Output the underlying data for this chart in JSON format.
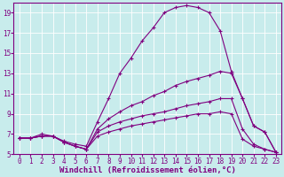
{
  "xlabel": "Windchill (Refroidissement éolien,°C)",
  "background_color": "#c8ecec",
  "grid_color": "#ffffff",
  "line_color": "#800080",
  "xlim": [
    -0.5,
    23.5
  ],
  "ylim": [
    5,
    20
  ],
  "xticks": [
    0,
    1,
    2,
    3,
    4,
    5,
    6,
    7,
    8,
    9,
    10,
    11,
    12,
    13,
    14,
    15,
    16,
    17,
    18,
    19,
    20,
    21,
    22,
    23
  ],
  "yticks": [
    5,
    7,
    9,
    11,
    13,
    15,
    17,
    19
  ],
  "lines": [
    {
      "x": [
        0,
        1,
        2,
        3,
        4,
        5,
        6,
        7,
        8,
        9,
        10,
        11,
        12,
        13,
        14,
        15,
        16,
        17,
        18,
        19,
        20,
        21,
        22,
        23
      ],
      "y": [
        6.6,
        6.6,
        7.0,
        6.8,
        6.3,
        6.0,
        5.8,
        8.2,
        10.5,
        13.0,
        14.5,
        16.2,
        17.5,
        19.0,
        19.5,
        19.7,
        19.5,
        19.0,
        17.2,
        13.2,
        10.5,
        7.8,
        7.2,
        5.2
      ]
    },
    {
      "x": [
        0,
        1,
        2,
        3,
        4,
        5,
        6,
        7,
        8,
        9,
        10,
        11,
        12,
        13,
        14,
        15,
        16,
        17,
        18,
        19,
        20,
        21,
        22,
        23
      ],
      "y": [
        6.6,
        6.6,
        6.8,
        6.8,
        6.2,
        5.8,
        5.5,
        7.5,
        8.5,
        9.2,
        9.8,
        10.2,
        10.8,
        11.2,
        11.8,
        12.2,
        12.5,
        12.8,
        13.2,
        13.0,
        10.5,
        7.8,
        7.2,
        5.2
      ]
    },
    {
      "x": [
        0,
        1,
        2,
        3,
        4,
        5,
        6,
        7,
        8,
        9,
        10,
        11,
        12,
        13,
        14,
        15,
        16,
        17,
        18,
        19,
        20,
        21,
        22,
        23
      ],
      "y": [
        6.6,
        6.6,
        6.8,
        6.8,
        6.2,
        5.8,
        5.5,
        7.2,
        7.8,
        8.2,
        8.5,
        8.8,
        9.0,
        9.2,
        9.5,
        9.8,
        10.0,
        10.2,
        10.5,
        10.5,
        7.5,
        6.0,
        5.5,
        5.2
      ]
    },
    {
      "x": [
        0,
        1,
        2,
        3,
        4,
        5,
        6,
        7,
        8,
        9,
        10,
        11,
        12,
        13,
        14,
        15,
        16,
        17,
        18,
        19,
        20,
        21,
        22,
        23
      ],
      "y": [
        6.6,
        6.6,
        6.8,
        6.8,
        6.2,
        5.8,
        5.5,
        6.8,
        7.2,
        7.5,
        7.8,
        8.0,
        8.2,
        8.4,
        8.6,
        8.8,
        9.0,
        9.0,
        9.2,
        9.0,
        6.5,
        5.8,
        5.5,
        5.2
      ]
    }
  ],
  "tick_fontsize": 5.5,
  "xlabel_fontsize": 6.5,
  "marker_size": 2.5,
  "line_width": 0.8
}
